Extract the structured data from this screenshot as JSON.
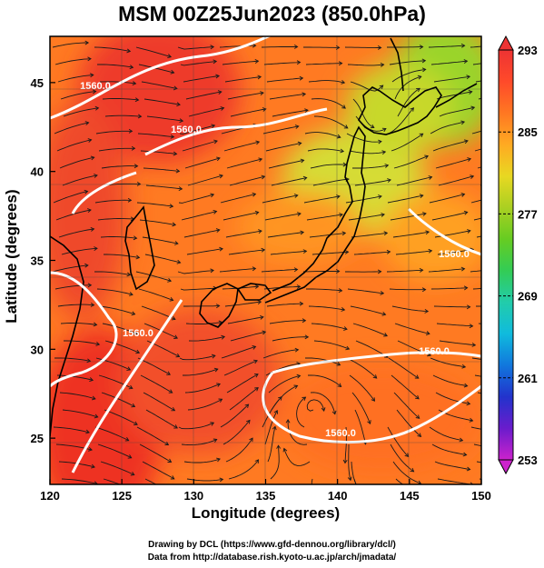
{
  "title": "MSM 00Z25Jun2023 (850.0hPa)",
  "x_axis": {
    "label": "Longitude (degrees)",
    "ticks": [
      "120",
      "125",
      "130",
      "135",
      "140",
      "145",
      "150"
    ],
    "range": [
      120,
      150
    ]
  },
  "y_axis": {
    "label": "Latitude  (degrees)",
    "ticks": [
      "25",
      "30",
      "35",
      "40",
      "45"
    ],
    "range": [
      22.4,
      47.6
    ]
  },
  "colorbar": {
    "min": 253,
    "max": 293,
    "labels": [
      "293",
      "285",
      "277",
      "269",
      "261",
      "253"
    ],
    "colors": [
      "#cc22cc",
      "#6a1ccc",
      "#2233cc",
      "#1177dd",
      "#10bbdd",
      "#22ccaa",
      "#33cc55",
      "#66cc22",
      "#aad022",
      "#e8d822",
      "#ffaa22",
      "#ff7722",
      "#ff4a2a",
      "#ee3333"
    ]
  },
  "contours": [
    {
      "label": "1560.0"
    },
    {
      "label": "1560.0"
    },
    {
      "label": "1560.0"
    },
    {
      "label": "1560.0"
    },
    {
      "label": "1560.0"
    },
    {
      "label": "1560.0"
    }
  ],
  "credits": {
    "drawing": "Drawing by DCL (https://www.gfd-dennou.org/library/dcl/)",
    "data": "Data from http://database.rish.kyoto-u.ac.jp/arch/jmadata/"
  },
  "field_colors": {
    "hot": "#ee3a2a",
    "warm": "#ff7a22",
    "mild": "#ffaa22",
    "cool": "#d8e030",
    "cooler": "#99d82a"
  }
}
